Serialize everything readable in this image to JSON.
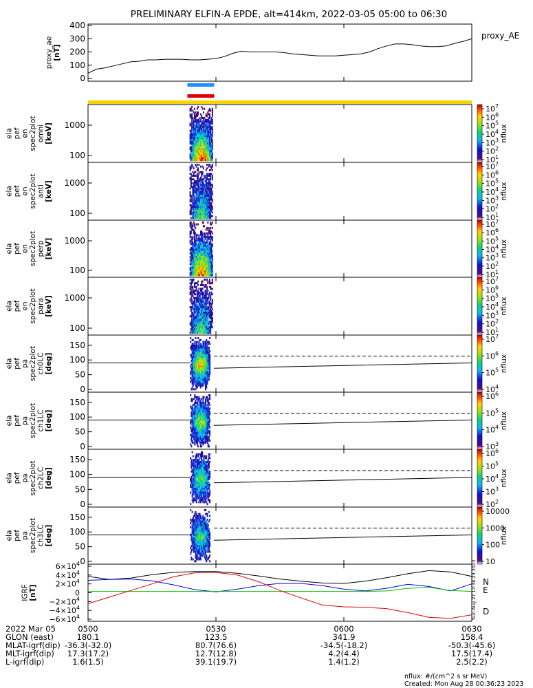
{
  "title": "PRELIMINARY ELFIN-A EPDE, alt=414km, 2022-03-05 05:00 to 06:30",
  "colors": {
    "ae": "#000000",
    "bar_blue": "#1e90ff",
    "bar_red": "#e00000",
    "bar_yellow": "#f5d400",
    "igrf_r": "#000000",
    "igrf_n": "#0000dd",
    "igrf_e": "#00bb00",
    "igrf_d": "#dd0000"
  },
  "chart_data": [
    {
      "id": "proxy_ae",
      "type": "line",
      "ylabel": "proxy_ae\n[nT]",
      "legend": "proxy_AE",
      "yticks": [
        "400",
        "300",
        "200",
        "100",
        "0"
      ],
      "ylim": [
        0,
        400
      ],
      "x_minutes": [
        0,
        2,
        4,
        6,
        8,
        10,
        12,
        14,
        16,
        18,
        20,
        22,
        24,
        26,
        28,
        30,
        32,
        34,
        36,
        38,
        40,
        42,
        44,
        46,
        48,
        50,
        52,
        54,
        56,
        58,
        60,
        62,
        64,
        66,
        68,
        70,
        72,
        74,
        76,
        78,
        80,
        82,
        84,
        86,
        88,
        90
      ],
      "values": [
        40,
        70,
        80,
        95,
        110,
        125,
        130,
        140,
        140,
        145,
        145,
        145,
        140,
        140,
        145,
        150,
        165,
        190,
        205,
        200,
        200,
        200,
        200,
        195,
        185,
        180,
        175,
        170,
        170,
        170,
        175,
        180,
        185,
        200,
        225,
        245,
        260,
        260,
        255,
        245,
        240,
        240,
        245,
        265,
        280,
        300
      ]
    },
    {
      "id": "en_omni",
      "type": "heatmap",
      "ylabel": "ela\npef\nen\nspec2plot\nomni\n[keV]",
      "yticks": [
        "1000",
        "100"
      ],
      "cbar_label": "nflux",
      "cbar_ticks": [
        "10",
        "10",
        "10",
        "10",
        "10",
        "10",
        "10"
      ],
      "cbar_exp": [
        "7",
        "6",
        "5",
        "4",
        "3",
        "2",
        "1"
      ]
    },
    {
      "id": "en_anti",
      "type": "heatmap",
      "ylabel": "ela\npef\nen\nspec2plot\nanti\n[keV]",
      "yticks": [
        "1000",
        "100"
      ],
      "cbar_label": "nflux",
      "cbar_ticks": [
        "10",
        "10",
        "10",
        "10",
        "10",
        "10",
        "10"
      ],
      "cbar_exp": [
        "7",
        "6",
        "5",
        "4",
        "3",
        "2",
        "1"
      ]
    },
    {
      "id": "en_perp",
      "type": "heatmap",
      "ylabel": "ela\npef\nen\nspec2plot\nperp\n[keV]",
      "yticks": [
        "1000",
        "100"
      ],
      "cbar_label": "nflux",
      "cbar_ticks": [
        "10",
        "10",
        "10",
        "10",
        "10",
        "10",
        "10"
      ],
      "cbar_exp": [
        "7",
        "6",
        "5",
        "4",
        "3",
        "2",
        "1"
      ]
    },
    {
      "id": "en_para",
      "type": "heatmap",
      "ylabel": "ela\npef\nen\nspec2plot\npara\n[keV]",
      "yticks": [
        "1000",
        "100"
      ],
      "cbar_label": "nflux",
      "cbar_ticks": [
        "10",
        "10",
        "10",
        "10",
        "10",
        "10",
        "10"
      ],
      "cbar_exp": [
        "7",
        "6",
        "5",
        "4",
        "3",
        "2",
        "1"
      ]
    },
    {
      "id": "pa_ch0",
      "type": "heatmap",
      "ylabel": "ela\npef\npa\nspec2plot\nch0LC\n[deg]",
      "yticks": [
        "150",
        "100",
        "50",
        "0"
      ],
      "cbar_label": "nflux",
      "cbar_ticks": [
        "10",
        "10",
        "10",
        "10"
      ],
      "cbar_exp": [
        "7",
        "6",
        "5",
        "4"
      ]
    },
    {
      "id": "pa_ch1",
      "type": "heatmap",
      "ylabel": "ela\npef\npa\nspec2plot\nch1LC\n[deg]",
      "yticks": [
        "150",
        "100",
        "50",
        "0"
      ],
      "cbar_label": "nflux",
      "cbar_ticks": [
        "10",
        "10",
        "10",
        "10"
      ],
      "cbar_exp": [
        "6",
        "5",
        "4",
        "3"
      ]
    },
    {
      "id": "pa_ch2",
      "type": "heatmap",
      "ylabel": "ela\npef\npa\nspec2plot\nch2LC\n[deg]",
      "yticks": [
        "150",
        "100",
        "50",
        "0"
      ],
      "cbar_label": "nflux",
      "cbar_ticks": [
        "10",
        "10",
        "10",
        "10",
        "10"
      ],
      "cbar_exp": [
        "6",
        "5",
        "4",
        "3",
        "2"
      ]
    },
    {
      "id": "pa_ch3",
      "type": "heatmap",
      "ylabel": "ela\npef\npa\nspec2plot\nch3LC\n[deg]",
      "yticks": [
        "150",
        "100",
        "50",
        "0"
      ],
      "cbar_label": "nflux",
      "cbar_ticks": [
        "10000",
        "1000",
        "100",
        "10"
      ],
      "cbar_exp": [
        "",
        "",
        "",
        ""
      ]
    },
    {
      "id": "igrf",
      "type": "line",
      "ylabel": "IGRF\n[nT]",
      "yticks": [
        "6×10",
        "4×10",
        "2×10",
        "0",
        "−2×10",
        "−4×10",
        "−6×10"
      ],
      "ytick_exp": [
        "4",
        "4",
        "4",
        "",
        "4",
        "4",
        "4"
      ],
      "ylim": [
        -60000,
        60000
      ],
      "legend": [
        "N",
        "E",
        "D"
      ],
      "stamp": "Sun Aug 27 17:38:23 2023",
      "x_minutes": [
        0,
        5,
        10,
        15,
        20,
        25,
        30,
        35,
        40,
        45,
        50,
        55,
        60,
        65,
        70,
        75,
        80,
        85,
        90
      ],
      "series": [
        {
          "name": "",
          "values": [
            37000,
            30000,
            33000,
            41000,
            46000,
            48000,
            48000,
            44000,
            38000,
            31000,
            26000,
            22000,
            21000,
            26000,
            34000,
            43000,
            50000,
            47000,
            37000
          ]
        },
        {
          "name": "N",
          "values": [
            28000,
            30000,
            31000,
            27000,
            18000,
            7000,
            2000,
            8000,
            16000,
            21000,
            21000,
            16000,
            8000,
            4000,
            10000,
            19000,
            14000,
            4000,
            20000
          ]
        },
        {
          "name": "E",
          "values": [
            3000,
            3000,
            3000,
            3000,
            3000,
            3000,
            3000,
            3000,
            3000,
            3000,
            3000,
            3000,
            3000,
            3000,
            4000,
            10000,
            12000,
            5000,
            3000
          ]
        },
        {
          "name": "D",
          "values": [
            -25000,
            -10000,
            5000,
            20000,
            36000,
            45000,
            46000,
            40000,
            25000,
            5000,
            -12000,
            -28000,
            -32000,
            -33000,
            -36000,
            -45000,
            -56000,
            -58000,
            -50000
          ]
        }
      ]
    }
  ],
  "bottom_table": {
    "rows": [
      [
        "2022 Mar 05",
        "0500",
        "0530",
        "0600",
        "0630"
      ],
      [
        "GLON (east)",
        "180.1",
        "123.5",
        "341.9",
        "158.4"
      ],
      [
        "MLAT-igrf(dip)",
        "-36.3(-32.0)",
        "80.7(76.6)",
        "-34.5(-18.2)",
        "-50.3(-45.6)"
      ],
      [
        "MLT-igrf(dip)",
        "17.3(17.2)",
        "12.7(12.8)",
        "4.2(4.4)",
        "17.5(17.4)"
      ],
      [
        "L-igrf(dip)",
        "1.6(1.5)",
        "39.1(19.7)",
        "1.4(1.2)",
        "2.5(2.2)"
      ]
    ]
  },
  "footer": {
    "units": "nflux: #/(cm^2 s sr MeV)",
    "created": "Created: Mon Aug 28 00:36:23 2023"
  }
}
